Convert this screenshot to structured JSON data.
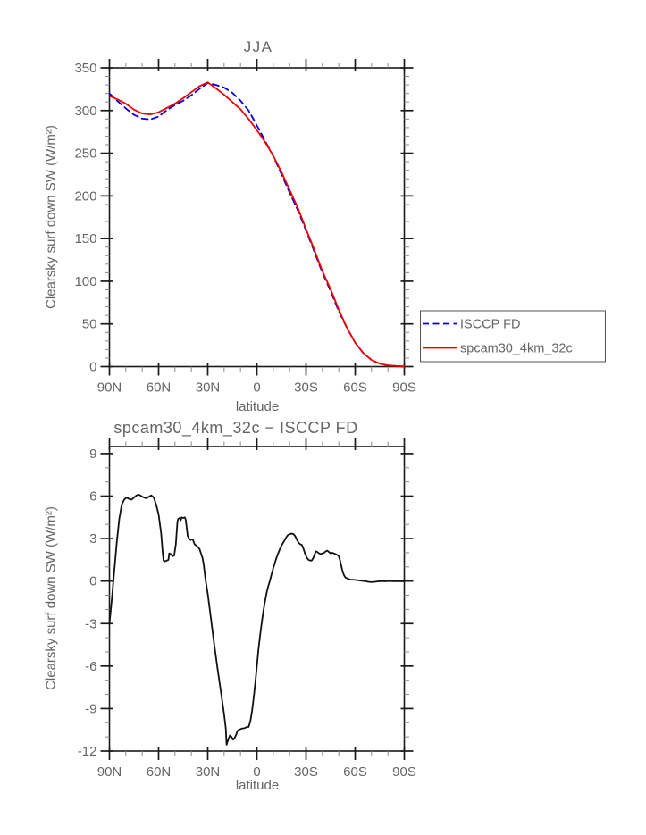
{
  "page": {
    "background": "#ffffff"
  },
  "chart_data": [
    {
      "type": "line",
      "title": "JJA",
      "xlabel": "latitude",
      "ylabel": "Clearsky surf down SW (W/m²)",
      "xlim": [
        90,
        -90
      ],
      "ylim": [
        0,
        350
      ],
      "x_major_step": 30,
      "x_minor_step": 10,
      "y_major_step": 50,
      "y_minor_step": 10,
      "x_tick_values": [
        90,
        60,
        30,
        0,
        -30,
        -60,
        -90
      ],
      "x_tick_labels": [
        "90N",
        "60N",
        "30N",
        "0",
        "30S",
        "60S",
        "90S"
      ],
      "grid": false,
      "legend_position": "outside-right",
      "axis_color": "#1a1a1a",
      "text_color": "#656565",
      "series": [
        {
          "id": "isccp-curve",
          "name": "ISCCP FD",
          "color": "#0000e0",
          "line_style": "dashed",
          "x": [
            90,
            85,
            80,
            75,
            70,
            65,
            60,
            55,
            50,
            45,
            40,
            35,
            30,
            25,
            20,
            15,
            10,
            5,
            0,
            -5,
            -10,
            -15,
            -20,
            -25,
            -30,
            -35,
            -40,
            -45,
            -50,
            -55,
            -60,
            -65,
            -70,
            -75,
            -80,
            -85,
            -90
          ],
          "values": [
            320,
            311,
            302.5,
            295,
            290.5,
            289.5,
            293,
            300.5,
            306.5,
            311.5,
            318,
            325.5,
            332.3,
            330,
            327,
            320.8,
            311.5,
            300,
            282.5,
            264.5,
            246.5,
            225.5,
            203.7,
            183.3,
            159.5,
            135,
            110.2,
            88.5,
            64.7,
            45.2,
            27.9,
            15.7,
            7.8,
            3.5,
            1.4,
            0.7,
            0.3
          ]
        },
        {
          "id": "spcam-curve",
          "name": "spcam30_4km_32c",
          "color": "#ee0000",
          "line_style": "solid",
          "x": [
            90,
            85,
            80,
            75,
            70,
            65,
            60,
            55,
            50,
            45,
            40,
            35,
            30,
            25,
            20,
            15,
            10,
            5,
            0,
            -5,
            -10,
            -15,
            -20,
            -25,
            -30,
            -35,
            -40,
            -45,
            -50,
            -55,
            -60,
            -65,
            -70,
            -75,
            -80,
            -85,
            -90
          ],
          "values": [
            317,
            313,
            308,
            301,
            296.5,
            295.5,
            298,
            303,
            308,
            314.5,
            321.5,
            328.5,
            333,
            326,
            318.5,
            310,
            301.5,
            290,
            277,
            263,
            247,
            228,
            207,
            186,
            161,
            137,
            112,
            90.5,
            66.5,
            45.5,
            28,
            15.8,
            7.7,
            3.5,
            1.4,
            0.7,
            0.3
          ]
        }
      ]
    },
    {
      "type": "line",
      "title": "spcam30_4km_32c − ISCCP FD",
      "xlabel": "latitude",
      "ylabel": "Clearsky surf down SW (W/m²)",
      "xlim": [
        90,
        -90
      ],
      "ylim": [
        -12,
        9
      ],
      "x_major_step": 30,
      "x_minor_step": 10,
      "y_major_step": 3,
      "y_minor_step": 1,
      "x_tick_values": [
        90,
        60,
        30,
        0,
        -30,
        -60,
        -90
      ],
      "x_tick_labels": [
        "90N",
        "60N",
        "30N",
        "0",
        "30S",
        "60S",
        "90S"
      ],
      "grid": false,
      "legend_position": "none",
      "axis_color": "#1a1a1a",
      "text_color": "#656565",
      "series": [
        {
          "id": "diff-curve",
          "name": "spcam30_4km_32c minus ISCCP FD",
          "color": "#111111",
          "line_style": "solid",
          "x": [
            90,
            88.5,
            87,
            85.5,
            84,
            82.5,
            81,
            79.5,
            78,
            76.5,
            75,
            73.5,
            72,
            70.5,
            69,
            67.5,
            66,
            64.5,
            63,
            61.5,
            60,
            58.5,
            57.5,
            57,
            56,
            55,
            54,
            53.5,
            52.5,
            51.5,
            50.5,
            49.5,
            48.5,
            48,
            47,
            46.5,
            46,
            45,
            44,
            43.5,
            43,
            42.3,
            41.5,
            40.5,
            40,
            39,
            38,
            37,
            36,
            35,
            34,
            33.2,
            32.5,
            31.5,
            30,
            28,
            26,
            24,
            22,
            20,
            19,
            18.5,
            17.5,
            16.5,
            15.5,
            14.5,
            13.5,
            12.5,
            12,
            11,
            10,
            9,
            8,
            7,
            6,
            5,
            4,
            3,
            2,
            1,
            0,
            -1,
            -2,
            -3,
            -4,
            -5,
            -6,
            -7,
            -8,
            -9,
            -10,
            -11,
            -12,
            -13,
            -14,
            -15,
            -16,
            -17,
            -18,
            -19,
            -20,
            -21,
            -22.5,
            -23.5,
            -24.5,
            -25.5,
            -26.5,
            -27.5,
            -28.5,
            -29.5,
            -30.5,
            -31.5,
            -32.5,
            -33.5,
            -34.5,
            -35.5,
            -36,
            -37,
            -38,
            -39,
            -40,
            -41,
            -42,
            -43,
            -44,
            -45,
            -46,
            -47,
            -48,
            -49,
            -50,
            -51,
            -52,
            -53,
            -54,
            -55,
            -56,
            -57,
            -58,
            -60,
            -62,
            -64,
            -66,
            -68,
            -70,
            -72,
            -74,
            -76,
            -78,
            -80,
            -82,
            -84,
            -86,
            -88,
            -90
          ],
          "values": [
            -3,
            -1.2,
            0.8,
            2.8,
            4.4,
            5.4,
            5.75,
            5.9,
            5.8,
            5.75,
            5.9,
            6.05,
            6.1,
            6,
            5.9,
            5.85,
            5.95,
            6.05,
            5.9,
            5.4,
            4.7,
            3.4,
            2,
            1.45,
            1.4,
            1.45,
            1.5,
            1.95,
            1.9,
            1.75,
            1.8,
            2.6,
            4.2,
            4.4,
            4.45,
            4.3,
            4.5,
            4.45,
            4.5,
            4.35,
            3.9,
            3.2,
            3,
            2.9,
            2.95,
            2.9,
            2.6,
            2.5,
            2.4,
            2.27,
            1.9,
            1.64,
            1.2,
            0.2,
            -0.9,
            -2.7,
            -4.5,
            -6.2,
            -7.8,
            -9.4,
            -10.4,
            -11.55,
            -11.2,
            -10.9,
            -11,
            -11.2,
            -11.05,
            -10.8,
            -10.6,
            -10.5,
            -10.45,
            -10.4,
            -10.4,
            -10.35,
            -10.3,
            -10.3,
            -9.9,
            -9.2,
            -8.3,
            -7.2,
            -6,
            -4.8,
            -3.8,
            -2.9,
            -2.1,
            -1.4,
            -0.8,
            -0.35,
            0.05,
            0.5,
            0.9,
            1.3,
            1.65,
            1.95,
            2.25,
            2.5,
            2.7,
            2.9,
            3.1,
            3.25,
            3.3,
            3.35,
            3.3,
            3.15,
            2.9,
            2.7,
            2.6,
            2.55,
            2.25,
            1.9,
            1.65,
            1.5,
            1.45,
            1.45,
            1.65,
            1.95,
            2.1,
            2.05,
            1.95,
            1.9,
            1.95,
            2,
            2.1,
            2.15,
            2.05,
            1.95,
            2,
            1.95,
            1.9,
            1.85,
            1.75,
            1.35,
            0.85,
            0.45,
            0.25,
            0.2,
            0.15,
            0.1,
            0.1,
            0.08,
            0.05,
            0.02,
            0,
            -0.05,
            -0.08,
            -0.05,
            -0.02,
            0,
            -0.02,
            0,
            0,
            -0.02,
            0,
            -0.02,
            0
          ]
        }
      ]
    }
  ]
}
